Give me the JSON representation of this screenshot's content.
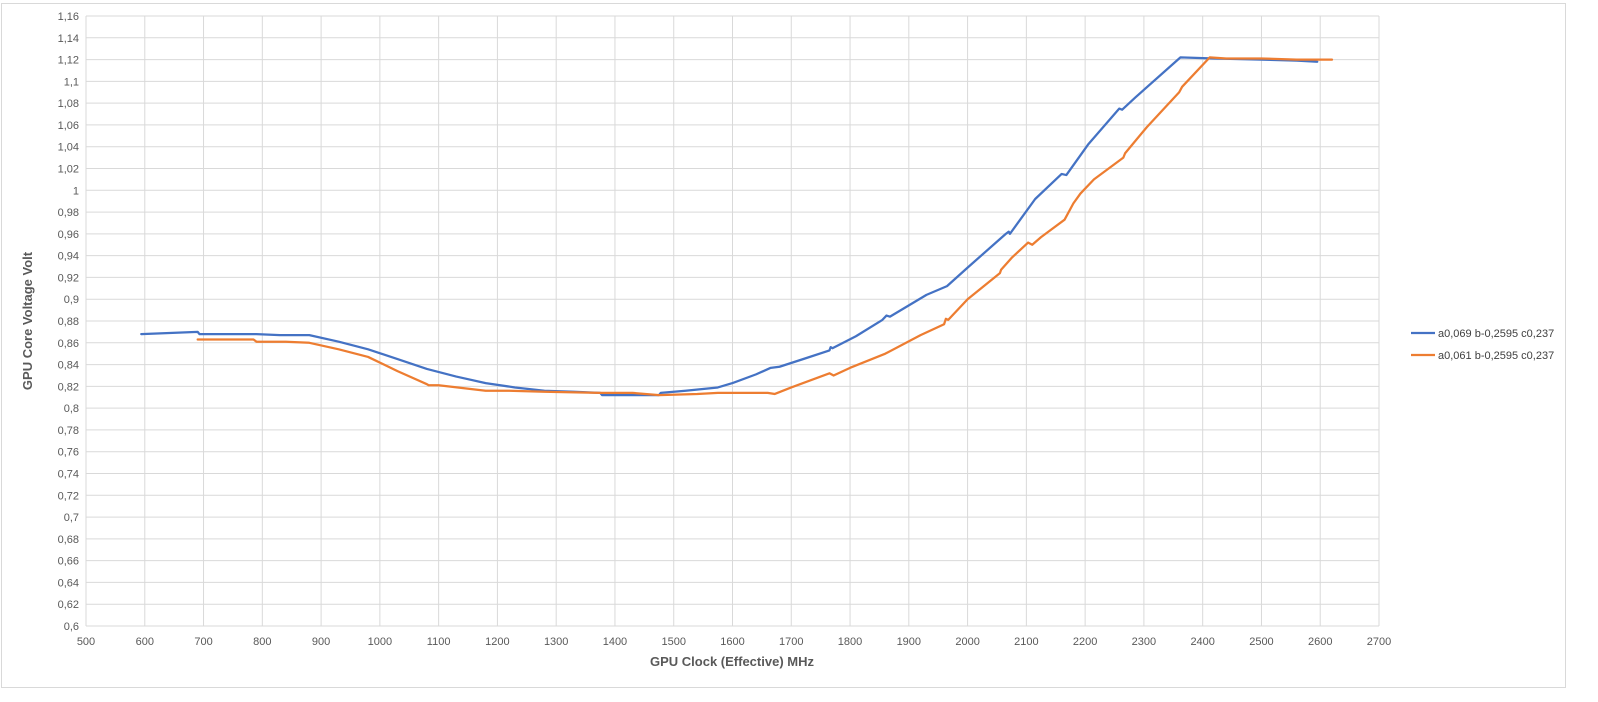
{
  "chart_data": {
    "type": "line",
    "title": "",
    "xlabel": "GPU Clock (Effective) MHz",
    "ylabel": "GPU Core Voltage  Volt",
    "xlim": [
      500,
      2700
    ],
    "ylim": [
      0.6,
      1.16
    ],
    "x_ticks": [
      500,
      600,
      700,
      800,
      900,
      1000,
      1100,
      1200,
      1300,
      1400,
      1500,
      1600,
      1700,
      1800,
      1900,
      2000,
      2100,
      2200,
      2300,
      2400,
      2500,
      2600,
      2700
    ],
    "y_ticks": [
      "1,16",
      "1,14",
      "1,12",
      "1,1",
      "1,08",
      "1,06",
      "1,04",
      "1,02",
      "1",
      "0,98",
      "0,96",
      "0,94",
      "0,92",
      "0,9",
      "0,88",
      "0,86",
      "0,84",
      "0,82",
      "0,8",
      "0,78",
      "0,76",
      "0,74",
      "0,72",
      "0,7",
      "0,68",
      "0,66",
      "0,64",
      "0,62",
      "0,6"
    ],
    "grid": true,
    "legend_position": "right",
    "series": [
      {
        "name": "a0,069 b-0,2595 c0,237",
        "color": "#4472C4",
        "points": [
          [
            594,
            0.868
          ],
          [
            690,
            0.87
          ],
          [
            693,
            0.868
          ],
          [
            790,
            0.868
          ],
          [
            830,
            0.867
          ],
          [
            880,
            0.867
          ],
          [
            930,
            0.861
          ],
          [
            980,
            0.854
          ],
          [
            1030,
            0.845
          ],
          [
            1080,
            0.836
          ],
          [
            1130,
            0.829
          ],
          [
            1180,
            0.823
          ],
          [
            1230,
            0.819
          ],
          [
            1280,
            0.816
          ],
          [
            1330,
            0.815
          ],
          [
            1375,
            0.814
          ],
          [
            1378,
            0.812
          ],
          [
            1420,
            0.812
          ],
          [
            1475,
            0.812
          ],
          [
            1478,
            0.814
          ],
          [
            1520,
            0.816
          ],
          [
            1575,
            0.819
          ],
          [
            1600,
            0.823
          ],
          [
            1640,
            0.831
          ],
          [
            1665,
            0.837
          ],
          [
            1680,
            0.838
          ],
          [
            1720,
            0.845
          ],
          [
            1765,
            0.853
          ],
          [
            1767,
            0.856
          ],
          [
            1770,
            0.855
          ],
          [
            1810,
            0.866
          ],
          [
            1855,
            0.881
          ],
          [
            1862,
            0.885
          ],
          [
            1868,
            0.884
          ],
          [
            1930,
            0.904
          ],
          [
            1965,
            0.912
          ],
          [
            2000,
            0.929
          ],
          [
            2065,
            0.96
          ],
          [
            2070,
            0.962
          ],
          [
            2072,
            0.96
          ],
          [
            2115,
            0.992
          ],
          [
            2160,
            1.015
          ],
          [
            2168,
            1.014
          ],
          [
            2205,
            1.042
          ],
          [
            2258,
            1.075
          ],
          [
            2263,
            1.074
          ],
          [
            2285,
            1.085
          ],
          [
            2360,
            1.121
          ],
          [
            2362,
            1.122
          ],
          [
            2420,
            1.121
          ],
          [
            2500,
            1.12
          ],
          [
            2560,
            1.119
          ],
          [
            2595,
            1.118
          ]
        ]
      },
      {
        "name": "a0,061 b-0,2595 c0,237",
        "color": "#ED7D31",
        "points": [
          [
            690,
            0.863
          ],
          [
            785,
            0.863
          ],
          [
            790,
            0.861
          ],
          [
            840,
            0.861
          ],
          [
            880,
            0.86
          ],
          [
            930,
            0.854
          ],
          [
            980,
            0.847
          ],
          [
            1030,
            0.834
          ],
          [
            1080,
            0.822
          ],
          [
            1083,
            0.821
          ],
          [
            1100,
            0.821
          ],
          [
            1180,
            0.816
          ],
          [
            1220,
            0.816
          ],
          [
            1280,
            0.815
          ],
          [
            1375,
            0.814
          ],
          [
            1430,
            0.814
          ],
          [
            1475,
            0.812
          ],
          [
            1540,
            0.813
          ],
          [
            1575,
            0.814
          ],
          [
            1660,
            0.814
          ],
          [
            1672,
            0.813
          ],
          [
            1700,
            0.819
          ],
          [
            1765,
            0.832
          ],
          [
            1772,
            0.83
          ],
          [
            1800,
            0.837
          ],
          [
            1860,
            0.85
          ],
          [
            1920,
            0.867
          ],
          [
            1960,
            0.877
          ],
          [
            1963,
            0.882
          ],
          [
            1967,
            0.881
          ],
          [
            2000,
            0.9
          ],
          [
            2055,
            0.924
          ],
          [
            2057,
            0.927
          ],
          [
            2075,
            0.938
          ],
          [
            2103,
            0.952
          ],
          [
            2110,
            0.95
          ],
          [
            2125,
            0.957
          ],
          [
            2165,
            0.973
          ],
          [
            2180,
            0.988
          ],
          [
            2192,
            0.997
          ],
          [
            2215,
            1.01
          ],
          [
            2265,
            1.03
          ],
          [
            2268,
            1.034
          ],
          [
            2305,
            1.058
          ],
          [
            2360,
            1.09
          ],
          [
            2365,
            1.095
          ],
          [
            2412,
            1.122
          ],
          [
            2440,
            1.121
          ],
          [
            2500,
            1.121
          ],
          [
            2560,
            1.12
          ],
          [
            2620,
            1.12
          ]
        ]
      }
    ]
  }
}
